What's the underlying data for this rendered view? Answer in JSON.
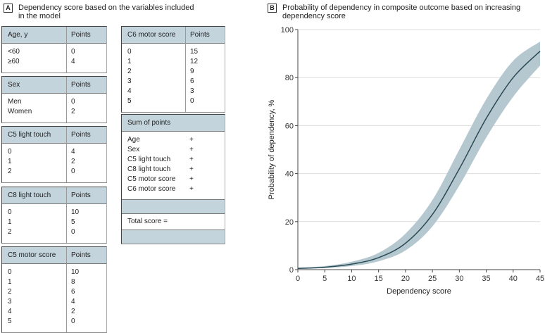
{
  "panel_a": {
    "label": "A",
    "title_line1": "Dependency score based on the variables included",
    "title_line2": "in the model",
    "tables": [
      {
        "header": [
          "Age, y",
          "Points"
        ],
        "rows": [
          [
            "<60",
            "0"
          ],
          [
            "≥60",
            "4"
          ]
        ]
      },
      {
        "header": [
          "Sex",
          "Points"
        ],
        "rows": [
          [
            "Men",
            "0"
          ],
          [
            "Women",
            "2"
          ]
        ]
      },
      {
        "header": [
          "C5 light touch",
          "Points"
        ],
        "rows": [
          [
            "0",
            "4"
          ],
          [
            "1",
            "2"
          ],
          [
            "2",
            "0"
          ]
        ]
      },
      {
        "header": [
          "C8 light touch",
          "Points"
        ],
        "rows": [
          [
            "0",
            "10"
          ],
          [
            "1",
            "5"
          ],
          [
            "2",
            "0"
          ]
        ]
      },
      {
        "header": [
          "C5 motor score",
          "Points"
        ],
        "rows": [
          [
            "0",
            "10"
          ],
          [
            "1",
            "8"
          ],
          [
            "2",
            "6"
          ],
          [
            "3",
            "4"
          ],
          [
            "4",
            "2"
          ],
          [
            "5",
            "0"
          ]
        ]
      },
      {
        "header": [
          "C6 motor score",
          "Points"
        ],
        "rows": [
          [
            "0",
            "15"
          ],
          [
            "1",
            "12"
          ],
          [
            "2",
            "9"
          ],
          [
            "3",
            "6"
          ],
          [
            "4",
            "3"
          ],
          [
            "5",
            "0"
          ]
        ]
      }
    ],
    "sum_table": {
      "header": "Sum of points",
      "rows": [
        [
          "Age",
          "+"
        ],
        [
          "Sex",
          "+"
        ],
        [
          "C5 light touch",
          "+"
        ],
        [
          "C8 light touch",
          "+"
        ],
        [
          "C5 motor score",
          "+"
        ],
        [
          "C6 motor score",
          "+"
        ]
      ],
      "total_label": "Total score ="
    }
  },
  "panel_b": {
    "label": "B",
    "title_line1": "Probability of dependency in composite outcome based on increasing",
    "title_line2": "dependency score"
  },
  "chart_data": {
    "type": "line",
    "title": "Probability of dependency in composite outcome based on increasing dependency score",
    "xlabel": "Dependency score",
    "ylabel": "Probability of dependency, %",
    "xlim": [
      0,
      45
    ],
    "ylim": [
      0,
      100
    ],
    "xticks": [
      0,
      5,
      10,
      15,
      20,
      25,
      30,
      35,
      40,
      45
    ],
    "yticks": [
      0,
      20,
      40,
      60,
      80,
      100
    ],
    "grid": "horizontal",
    "series": [
      {
        "name": "Probability",
        "x": [
          0,
          5,
          10,
          15,
          20,
          25,
          30,
          35,
          40,
          45
        ],
        "values": [
          0.5,
          1,
          2.3,
          5,
          11,
          23,
          42,
          63,
          80,
          91
        ],
        "lower": [
          0.3,
          0.7,
          1.5,
          3.5,
          8,
          18,
          35,
          55,
          72,
          85
        ],
        "upper": [
          0.8,
          1.5,
          3.3,
          7,
          15,
          29,
          50,
          71,
          87,
          95
        ]
      }
    ],
    "colors": {
      "line": "#2a4a55",
      "band": "#b5c8d0",
      "grid": "#dddddd"
    }
  }
}
